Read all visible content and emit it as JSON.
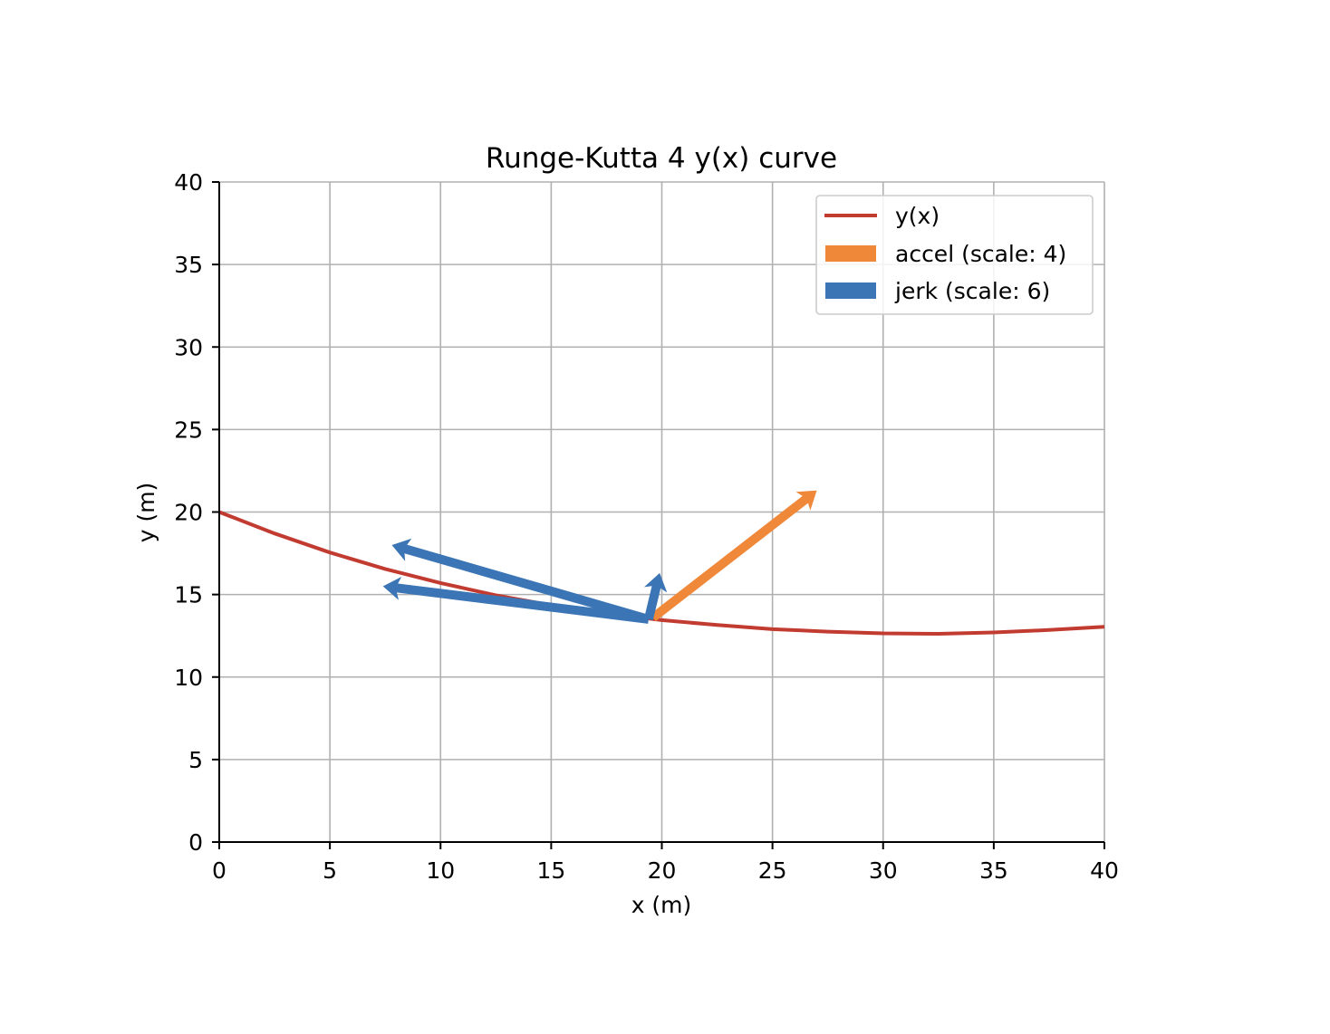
{
  "chart_data": {
    "type": "line",
    "title": "Runge-Kutta 4 y(x) curve",
    "xlabel": "x (m)",
    "ylabel": "y (m)",
    "xlim": [
      0,
      40
    ],
    "ylim": [
      0,
      40
    ],
    "xticks": [
      "0",
      "5",
      "10",
      "15",
      "20",
      "25",
      "30",
      "35",
      "40"
    ],
    "yticks": [
      "0",
      "5",
      "10",
      "15",
      "20",
      "25",
      "30",
      "35",
      "40"
    ],
    "grid": true,
    "legend_position": "top-right",
    "series": [
      {
        "name": "y(x)",
        "kind": "line",
        "color": "#c23b30",
        "x": [
          0,
          2.5,
          5,
          7.5,
          10,
          12.5,
          15,
          17.5,
          20,
          22.5,
          25,
          27.5,
          30,
          32.5,
          35,
          37.5,
          40
        ],
        "y": [
          20.0,
          18.7,
          17.55,
          16.55,
          15.7,
          14.95,
          14.35,
          13.85,
          13.45,
          13.15,
          12.9,
          12.75,
          12.65,
          12.62,
          12.7,
          12.85,
          13.05
        ]
      }
    ],
    "vectors": [
      {
        "name": "accel (scale: 4)",
        "color": "#f0883a",
        "arrows": [
          {
            "x0": 19.6,
            "y0": 13.6,
            "x1": 27.0,
            "y1": 21.3
          }
        ]
      },
      {
        "name": "jerk (scale: 6)",
        "color": "#3b75b5",
        "arrows": [
          {
            "x0": 19.4,
            "y0": 13.5,
            "x1": 7.8,
            "y1": 18.0
          },
          {
            "x0": 19.4,
            "y0": 13.5,
            "x1": 7.4,
            "y1": 15.5
          },
          {
            "x0": 19.4,
            "y0": 13.5,
            "x1": 19.9,
            "y1": 16.3
          }
        ]
      }
    ]
  }
}
